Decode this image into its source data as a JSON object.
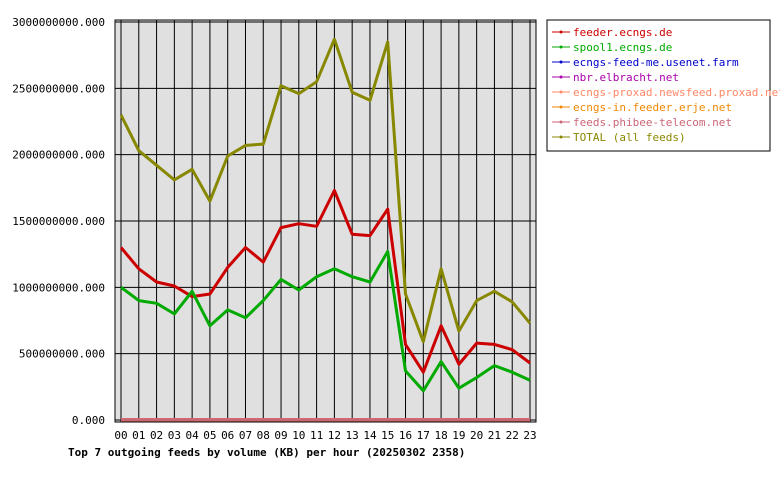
{
  "chart_data": {
    "type": "line",
    "title": "Top 7 outgoing feeds by volume (KB) per hour (20250302 2358)",
    "categories": [
      "00",
      "01",
      "02",
      "03",
      "04",
      "05",
      "06",
      "07",
      "08",
      "09",
      "10",
      "11",
      "12",
      "13",
      "14",
      "15",
      "16",
      "17",
      "18",
      "19",
      "20",
      "21",
      "22",
      "23"
    ],
    "y_ticks": [
      "0.000",
      "500000000.000",
      "1000000000.000",
      "1500000000.000",
      "2000000000.000",
      "2500000000.000",
      "3000000000.000"
    ],
    "ylim": [
      0,
      3000000000
    ],
    "grid": true,
    "legend_position": "right",
    "series": [
      {
        "name": "feeder.ecngs.de",
        "color": "#cc0000",
        "values": [
          1300000000,
          1140000000,
          1040000000,
          1010000000,
          930000000,
          950000000,
          1150000000,
          1300000000,
          1190000000,
          1450000000,
          1480000000,
          1460000000,
          1730000000,
          1400000000,
          1390000000,
          1590000000,
          570000000,
          360000000,
          710000000,
          420000000,
          580000000,
          570000000,
          530000000,
          430000000
        ]
      },
      {
        "name": "spool1.ecngs.de",
        "color": "#00aa00",
        "values": [
          1000000000,
          900000000,
          880000000,
          800000000,
          970000000,
          710000000,
          830000000,
          770000000,
          900000000,
          1060000000,
          980000000,
          1080000000,
          1140000000,
          1080000000,
          1040000000,
          1270000000,
          370000000,
          220000000,
          440000000,
          240000000,
          320000000,
          410000000,
          360000000,
          300000000
        ]
      },
      {
        "name": "ecngs-feed-me.usenet.farm",
        "color": "#0000cc",
        "values": [
          2000000,
          2000000,
          2000000,
          2000000,
          2000000,
          2000000,
          2000000,
          2000000,
          2000000,
          2000000,
          2000000,
          2000000,
          2000000,
          2000000,
          2000000,
          2000000,
          2000000,
          2000000,
          2000000,
          2000000,
          2000000,
          2000000,
          2000000,
          2000000
        ]
      },
      {
        "name": "nbr.elbracht.net",
        "color": "#aa00aa",
        "values": [
          2000000,
          2000000,
          2000000,
          2000000,
          2000000,
          2000000,
          2000000,
          2000000,
          2000000,
          2000000,
          2000000,
          2000000,
          2000000,
          2000000,
          2000000,
          2000000,
          2000000,
          2000000,
          2000000,
          2000000,
          2000000,
          2000000,
          2000000,
          2000000
        ]
      },
      {
        "name": "ecngs-proxad.newsfeed.proxad.net",
        "color": "#ff8866",
        "values": [
          2000000,
          2000000,
          2000000,
          2000000,
          2000000,
          2000000,
          2000000,
          2000000,
          2000000,
          2000000,
          2000000,
          2000000,
          2000000,
          2000000,
          2000000,
          2000000,
          2000000,
          2000000,
          2000000,
          2000000,
          2000000,
          2000000,
          2000000,
          2000000
        ]
      },
      {
        "name": "ecngs-in.feeder.erje.net",
        "color": "#ee8800",
        "values": [
          2000000,
          2000000,
          2000000,
          2000000,
          2000000,
          2000000,
          2000000,
          2000000,
          2000000,
          2000000,
          2000000,
          2000000,
          2000000,
          2000000,
          2000000,
          2000000,
          2000000,
          2000000,
          2000000,
          2000000,
          2000000,
          2000000,
          2000000,
          2000000
        ]
      },
      {
        "name": "feeds.phibee-telecom.net",
        "color": "#cc6677",
        "values": [
          2000000,
          2000000,
          2000000,
          2000000,
          2000000,
          2000000,
          2000000,
          2000000,
          2000000,
          2000000,
          2000000,
          2000000,
          2000000,
          2000000,
          2000000,
          2000000,
          2000000,
          2000000,
          2000000,
          2000000,
          2000000,
          2000000,
          2000000,
          2000000
        ]
      },
      {
        "name": "TOTAL (all feeds)",
        "color": "#888800",
        "values": [
          2300000000,
          2030000000,
          1920000000,
          1810000000,
          1890000000,
          1650000000,
          1990000000,
          2070000000,
          2080000000,
          2520000000,
          2460000000,
          2550000000,
          2870000000,
          2470000000,
          2410000000,
          2850000000,
          950000000,
          590000000,
          1140000000,
          670000000,
          900000000,
          970000000,
          890000000,
          730000000
        ]
      }
    ]
  }
}
